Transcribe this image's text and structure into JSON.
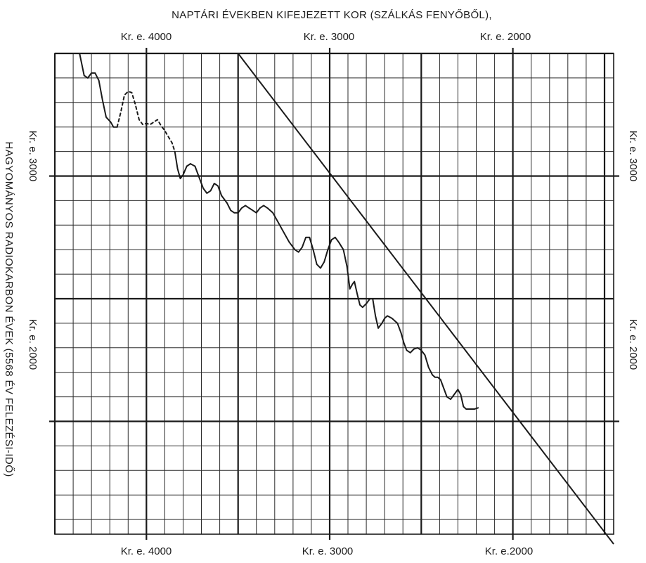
{
  "chart_data": {
    "type": "line",
    "title": "NAPTÁRI ÉVEKBEN KIFEJEZETT KOR (SZÁLKÁS FENYŐBŐL),",
    "xlabel": "NAPTÁRI ÉVEKBEN KIFEJEZETT KOR (SZÁLKÁS FENYŐBŐL),",
    "ylabel": "HAGYOMÁNYOS RADIOKARBON ÉVEK (5568 ÉV FELEZÉSI-IDŐ)",
    "x_axis": {
      "unit": "calendar years BC",
      "reversed": true,
      "range": [
        4500,
        1450
      ],
      "major_ticks": [
        4000,
        3000,
        2000
      ],
      "tick_labels_top": [
        "Kr. e. 4000",
        "Kr. e. 3000",
        "Kr. e. 2000"
      ],
      "tick_labels_bottom": [
        "Kr. e. 4000",
        "Kr. e. 3000",
        "Kr. e.2000"
      ]
    },
    "y_axis": {
      "unit": "radiocarbon years BC",
      "range": [
        3500,
        1540
      ],
      "major_ticks": [
        3000,
        2000
      ],
      "tick_labels_left": [
        "Kr. e. 3000",
        "Kr. e. 2000"
      ],
      "tick_labels_right": [
        "Kr. e. 3000",
        "Kr. e. 2000"
      ]
    },
    "grid": true,
    "series": [
      {
        "style": "solid",
        "points": [
          [
            4365,
            3500
          ],
          [
            4340,
            3410
          ],
          [
            4320,
            3400
          ],
          [
            4300,
            3420
          ],
          [
            4280,
            3420
          ],
          [
            4260,
            3390
          ],
          [
            4240,
            3310
          ],
          [
            4220,
            3240
          ],
          [
            4195,
            3220
          ],
          [
            4180,
            3200
          ],
          [
            4160,
            3200
          ]
        ]
      },
      {
        "style": "dashed",
        "points": [
          [
            4160,
            3200
          ],
          [
            4140,
            3260
          ],
          [
            4120,
            3330
          ],
          [
            4100,
            3345
          ],
          [
            4080,
            3340
          ],
          [
            4060,
            3290
          ],
          [
            4040,
            3230
          ],
          [
            4020,
            3210
          ],
          [
            4000,
            3215
          ],
          [
            3980,
            3210
          ],
          [
            3960,
            3220
          ],
          [
            3940,
            3230
          ],
          [
            3920,
            3205
          ],
          [
            3900,
            3185
          ],
          [
            3880,
            3160
          ],
          [
            3860,
            3135
          ],
          [
            3845,
            3100
          ]
        ]
      },
      {
        "style": "solid",
        "points": [
          [
            3845,
            3100
          ],
          [
            3830,
            3030
          ],
          [
            3815,
            2990
          ],
          [
            3800,
            3005
          ],
          [
            3780,
            3040
          ],
          [
            3760,
            3050
          ],
          [
            3735,
            3040
          ],
          [
            3710,
            2990
          ],
          [
            3690,
            2950
          ],
          [
            3670,
            2930
          ],
          [
            3650,
            2940
          ],
          [
            3630,
            2970
          ],
          [
            3610,
            2960
          ],
          [
            3590,
            2920
          ],
          [
            3560,
            2890
          ],
          [
            3540,
            2860
          ],
          [
            3520,
            2850
          ],
          [
            3500,
            2850
          ],
          [
            3480,
            2870
          ],
          [
            3460,
            2880
          ],
          [
            3440,
            2870
          ],
          [
            3420,
            2860
          ],
          [
            3400,
            2850
          ],
          [
            3380,
            2870
          ],
          [
            3360,
            2880
          ],
          [
            3340,
            2870
          ],
          [
            3310,
            2850
          ],
          [
            3280,
            2810
          ],
          [
            3250,
            2770
          ],
          [
            3220,
            2730
          ],
          [
            3190,
            2700
          ],
          [
            3170,
            2690
          ],
          [
            3150,
            2710
          ],
          [
            3130,
            2750
          ],
          [
            3110,
            2750
          ],
          [
            3090,
            2700
          ],
          [
            3070,
            2640
          ],
          [
            3050,
            2625
          ],
          [
            3030,
            2650
          ],
          [
            3010,
            2700
          ],
          [
            2990,
            2740
          ],
          [
            2970,
            2750
          ],
          [
            2950,
            2730
          ],
          [
            2925,
            2700
          ],
          [
            2905,
            2630
          ],
          [
            2890,
            2540
          ],
          [
            2875,
            2560
          ],
          [
            2865,
            2570
          ],
          [
            2850,
            2520
          ],
          [
            2835,
            2475
          ],
          [
            2820,
            2465
          ],
          [
            2800,
            2480
          ],
          [
            2780,
            2500
          ],
          [
            2765,
            2500
          ],
          [
            2750,
            2430
          ],
          [
            2735,
            2380
          ],
          [
            2715,
            2400
          ],
          [
            2700,
            2420
          ],
          [
            2685,
            2430
          ],
          [
            2660,
            2420
          ],
          [
            2630,
            2400
          ],
          [
            2610,
            2360
          ],
          [
            2595,
            2320
          ],
          [
            2580,
            2290
          ],
          [
            2560,
            2280
          ],
          [
            2540,
            2295
          ],
          [
            2520,
            2300
          ],
          [
            2500,
            2290
          ],
          [
            2480,
            2270
          ],
          [
            2460,
            2220
          ],
          [
            2440,
            2190
          ],
          [
            2425,
            2180
          ],
          [
            2410,
            2180
          ],
          [
            2395,
            2170
          ],
          [
            2380,
            2140
          ],
          [
            2360,
            2100
          ],
          [
            2340,
            2090
          ],
          [
            2320,
            2110
          ],
          [
            2300,
            2130
          ],
          [
            2285,
            2110
          ],
          [
            2270,
            2060
          ],
          [
            2255,
            2050
          ],
          [
            2235,
            2050
          ],
          [
            2210,
            2050
          ],
          [
            2190,
            2055
          ]
        ]
      },
      {
        "style": "solid",
        "points": [
          [
            3500,
            3500
          ],
          [
            1450,
            1500
          ]
        ]
      }
    ]
  }
}
